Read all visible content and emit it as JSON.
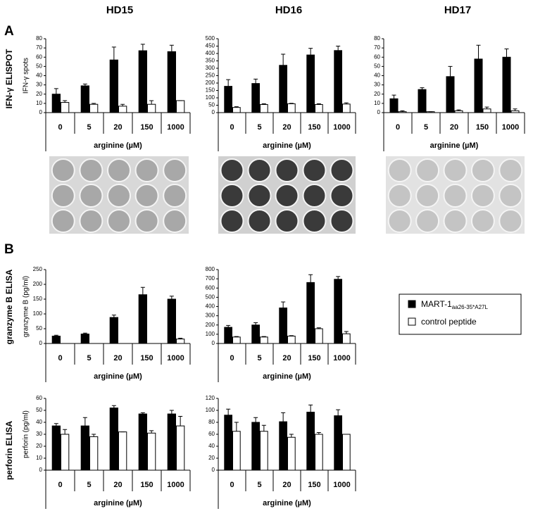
{
  "headers": [
    "HD15",
    "HD16",
    "HD17"
  ],
  "panels": [
    "A",
    "B"
  ],
  "rows": [
    "IFN-γ ELISPOT",
    "granzyme B ELISA",
    "perforin ELISA"
  ],
  "legend": {
    "first": {
      "name": "MART-1",
      "subscript": "aa26-35*A27L",
      "color": "#000000"
    },
    "second": {
      "name": "control peptide",
      "color": "#ffffff"
    }
  },
  "chart_data": [
    {
      "type": "bar",
      "ylabel": "IFN-γ spots",
      "xlabel": "arginine (µM)",
      "categories": [
        "0",
        "5",
        "20",
        "150",
        "1000"
      ],
      "ylim": [
        0,
        80
      ],
      "yticks": [
        0,
        10,
        20,
        30,
        40,
        50,
        60,
        70,
        80
      ],
      "series": [
        {
          "color": "#000000",
          "values": [
            20,
            29,
            57,
            67,
            66
          ],
          "errors": [
            6,
            2,
            14,
            7,
            7
          ]
        },
        {
          "color": "#ffffff",
          "values": [
            11,
            9,
            7,
            9,
            13
          ],
          "errors": [
            2,
            1,
            2,
            4,
            0
          ]
        }
      ]
    },
    {
      "type": "bar",
      "xlabel": "arginine (µM)",
      "categories": [
        "0",
        "5",
        "20",
        "150",
        "1000"
      ],
      "ylim": [
        0,
        500
      ],
      "yticks": [
        0,
        50,
        100,
        150,
        200,
        250,
        300,
        350,
        400,
        450,
        500
      ],
      "series": [
        {
          "color": "#000000",
          "values": [
            178,
            197,
            320,
            390,
            420
          ],
          "errors": [
            45,
            30,
            75,
            45,
            30
          ]
        },
        {
          "color": "#ffffff",
          "values": [
            35,
            55,
            60,
            55,
            58
          ],
          "errors": [
            5,
            5,
            3,
            5,
            8
          ]
        }
      ]
    },
    {
      "type": "bar",
      "xlabel": "arginine (µM)",
      "categories": [
        "0",
        "5",
        "20",
        "150",
        "1000"
      ],
      "ylim": [
        0,
        80
      ],
      "yticks": [
        0,
        10,
        20,
        30,
        40,
        50,
        60,
        70,
        80
      ],
      "series": [
        {
          "color": "#000000",
          "values": [
            15,
            25,
            39,
            58,
            60
          ],
          "errors": [
            4,
            2,
            11,
            15,
            9
          ]
        },
        {
          "color": "#ffffff",
          "values": [
            1,
            1,
            2,
            4,
            2
          ],
          "errors": [
            1,
            0,
            1,
            2,
            2
          ]
        }
      ]
    },
    {
      "type": "bar",
      "ylabel": "granzyme B (pg/ml)",
      "xlabel": "arginine (µM)",
      "categories": [
        "0",
        "5",
        "20",
        "150",
        "1000"
      ],
      "ylim": [
        0,
        250
      ],
      "yticks": [
        0,
        50,
        100,
        150,
        200,
        250
      ],
      "series": [
        {
          "color": "#000000",
          "values": [
            25,
            32,
            88,
            165,
            150
          ],
          "errors": [
            3,
            3,
            8,
            25,
            10
          ]
        },
        {
          "color": "#ffffff",
          "values": [
            0,
            0,
            0,
            0,
            15
          ],
          "errors": [
            0,
            0,
            0,
            0,
            3
          ]
        }
      ]
    },
    {
      "type": "bar",
      "xlabel": "arginine (µM)",
      "categories": [
        "0",
        "5",
        "20",
        "150",
        "1000"
      ],
      "ylim": [
        0,
        800
      ],
      "yticks": [
        0,
        100,
        200,
        300,
        400,
        500,
        600,
        700,
        800
      ],
      "series": [
        {
          "color": "#000000",
          "values": [
            175,
            200,
            385,
            660,
            695
          ],
          "errors": [
            20,
            25,
            65,
            85,
            30
          ]
        },
        {
          "color": "#ffffff",
          "values": [
            70,
            70,
            80,
            160,
            105
          ],
          "errors": [
            5,
            5,
            5,
            10,
            25
          ]
        }
      ]
    },
    {
      "type": "bar",
      "ylabel": "perforin (pg/ml)",
      "xlabel": "arginine (µM)",
      "categories": [
        "0",
        "5",
        "20",
        "150",
        "1000"
      ],
      "ylim": [
        0,
        60
      ],
      "yticks": [
        0,
        10,
        20,
        30,
        40,
        50,
        60
      ],
      "series": [
        {
          "color": "#000000",
          "values": [
            37,
            37,
            52,
            47,
            47
          ],
          "errors": [
            2,
            7,
            2,
            1,
            3
          ]
        },
        {
          "color": "#ffffff",
          "values": [
            30,
            28,
            32,
            31,
            37
          ],
          "errors": [
            4,
            2,
            0,
            2,
            8
          ]
        }
      ]
    },
    {
      "type": "bar",
      "xlabel": "arginine (µM)",
      "categories": [
        "0",
        "5",
        "20",
        "150",
        "1000"
      ],
      "ylim": [
        0,
        120
      ],
      "yticks": [
        0,
        20,
        40,
        60,
        80,
        100,
        120
      ],
      "series": [
        {
          "color": "#000000",
          "values": [
            92,
            80,
            81,
            97,
            91
          ],
          "errors": [
            10,
            8,
            15,
            12,
            10
          ]
        },
        {
          "color": "#ffffff",
          "values": [
            65,
            65,
            55,
            60,
            60
          ],
          "errors": [
            15,
            10,
            5,
            3,
            0
          ]
        }
      ]
    }
  ]
}
